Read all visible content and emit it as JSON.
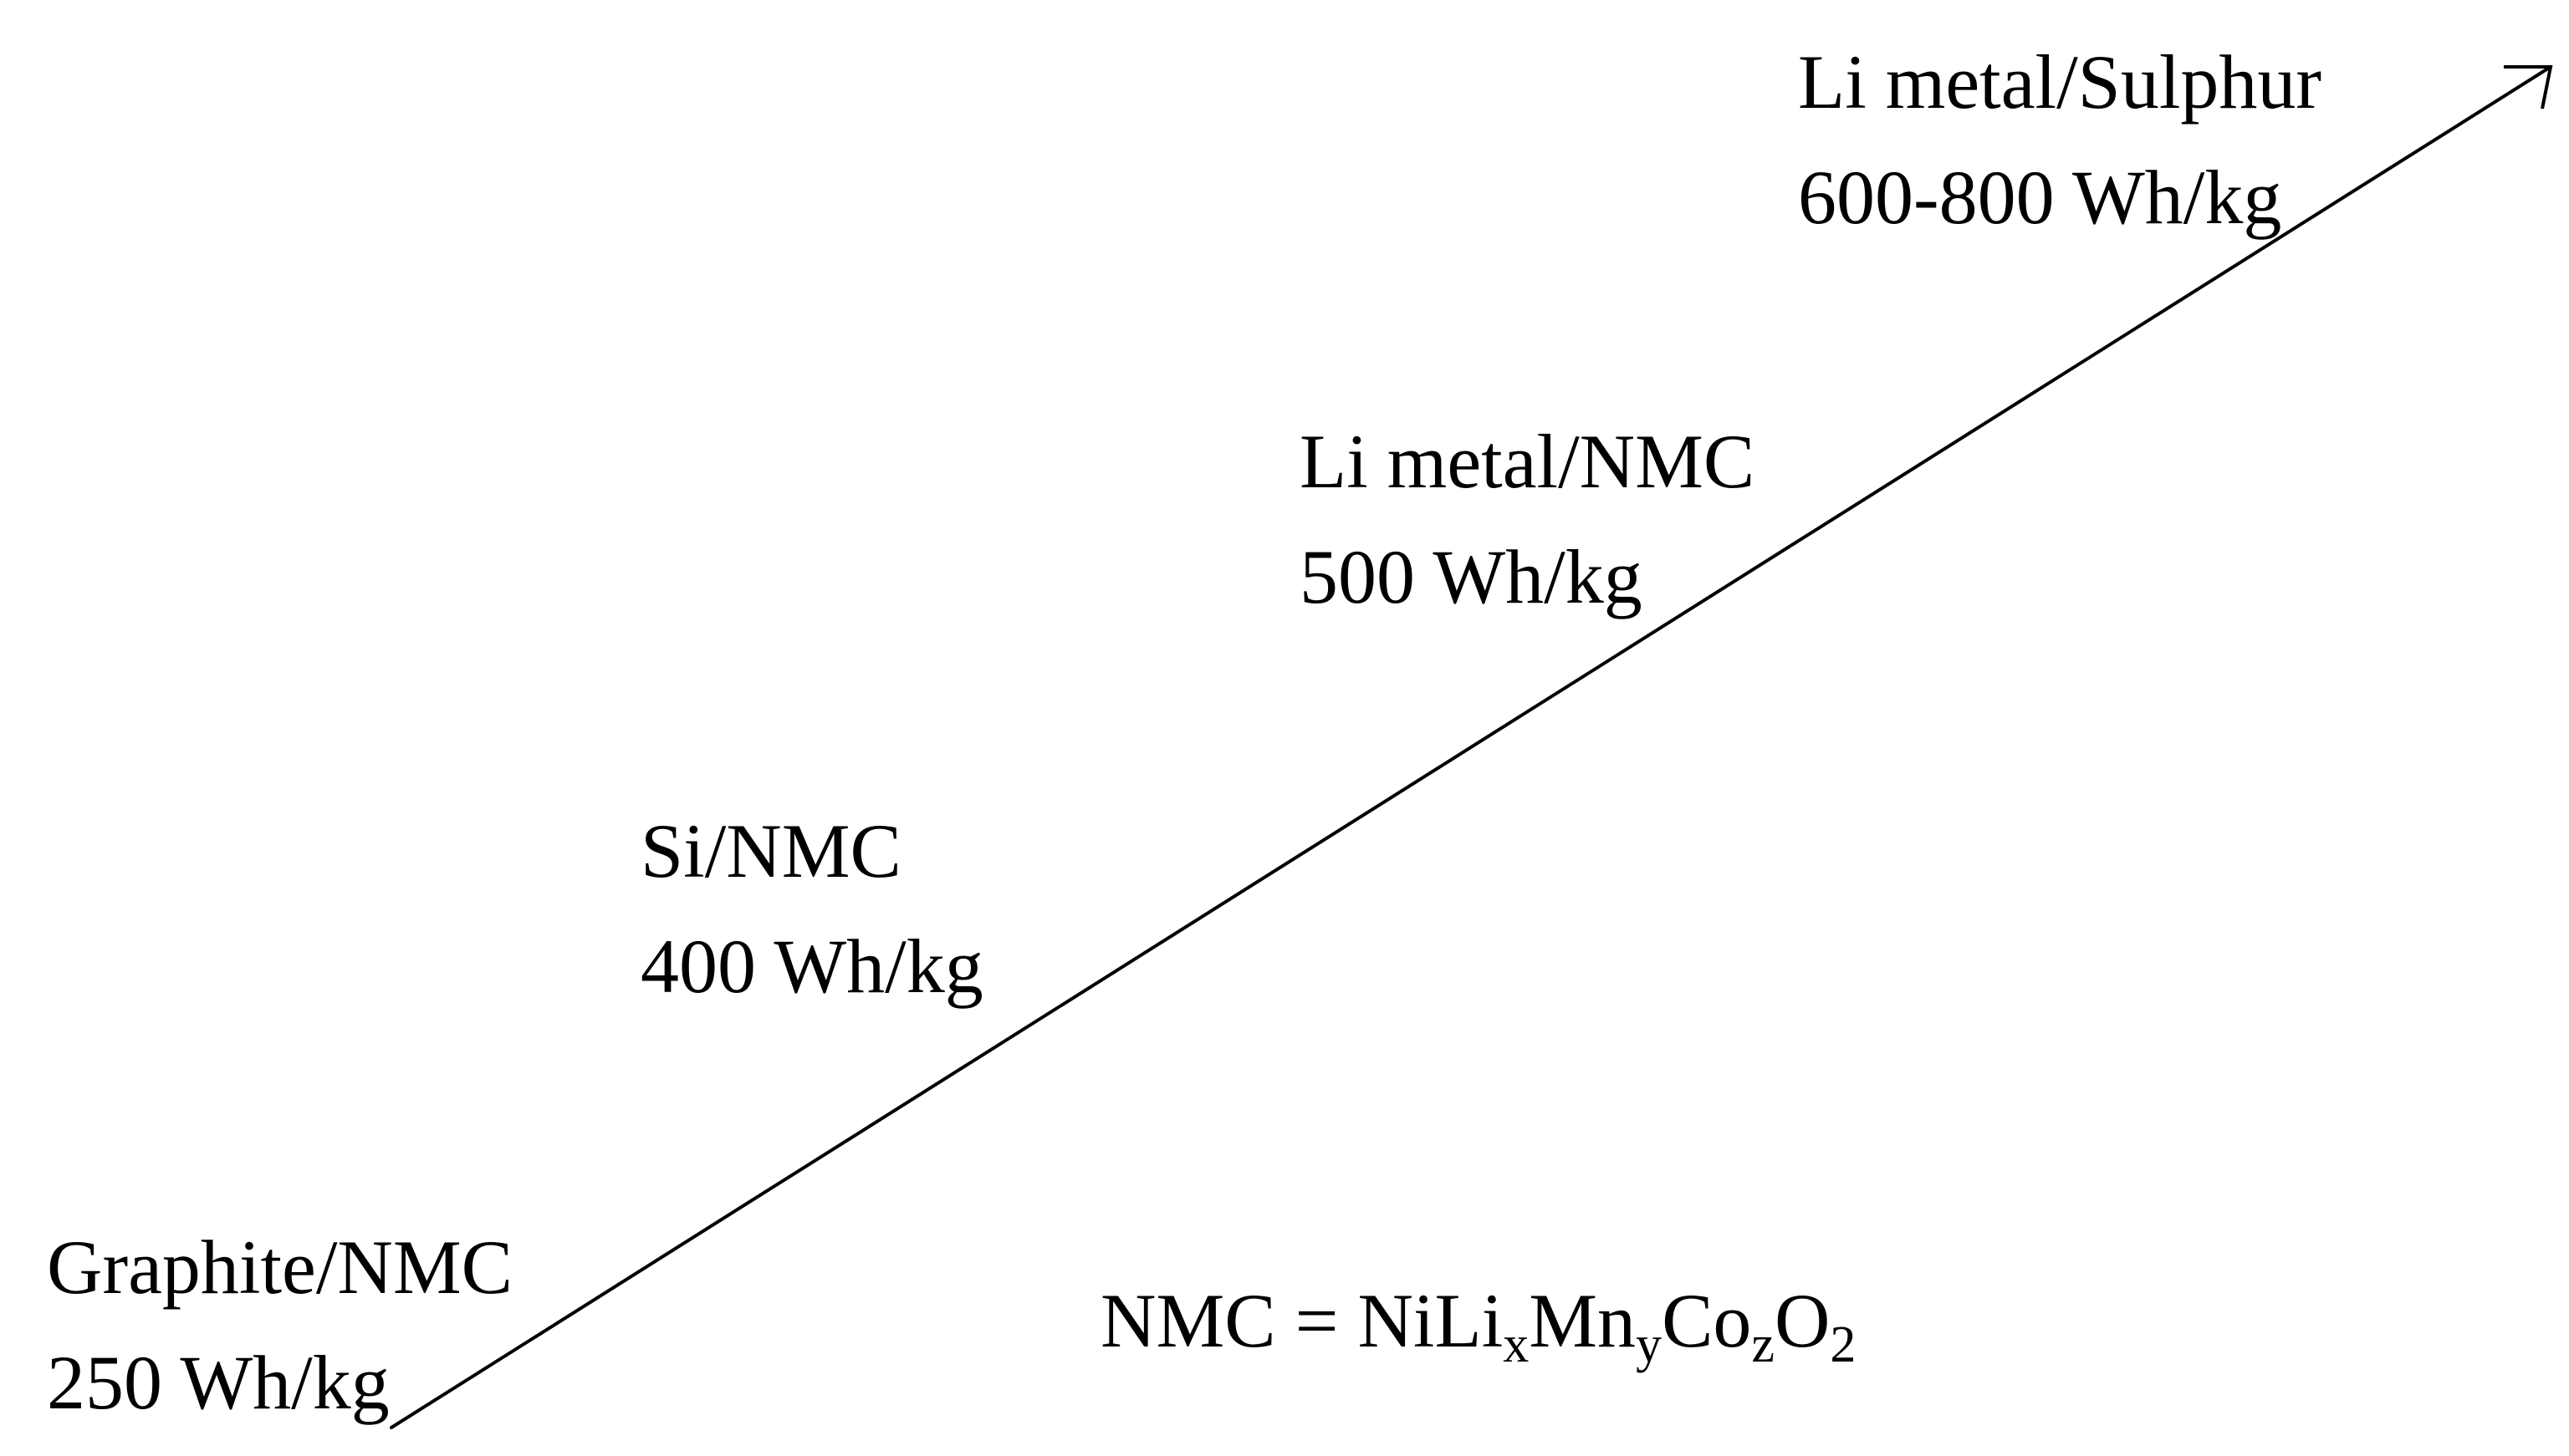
{
  "stages": [
    {
      "name": "Graphite/NMC",
      "energy": "250 Wh/kg"
    },
    {
      "name": "Si/NMC",
      "energy": "400 Wh/kg"
    },
    {
      "name": "Li metal/NMC",
      "energy": "500 Wh/kg"
    },
    {
      "name": "Li metal/Sulphur",
      "energy": "600-800 Wh/kg"
    }
  ],
  "formula": {
    "lhs": "NMC = NiLi",
    "x": "x",
    "mn": "Mn",
    "y": "y",
    "co": "Co",
    "z": "z",
    "o": "O",
    "two": "2"
  },
  "colors": {
    "ink": "#000000",
    "background": "#ffffff"
  }
}
